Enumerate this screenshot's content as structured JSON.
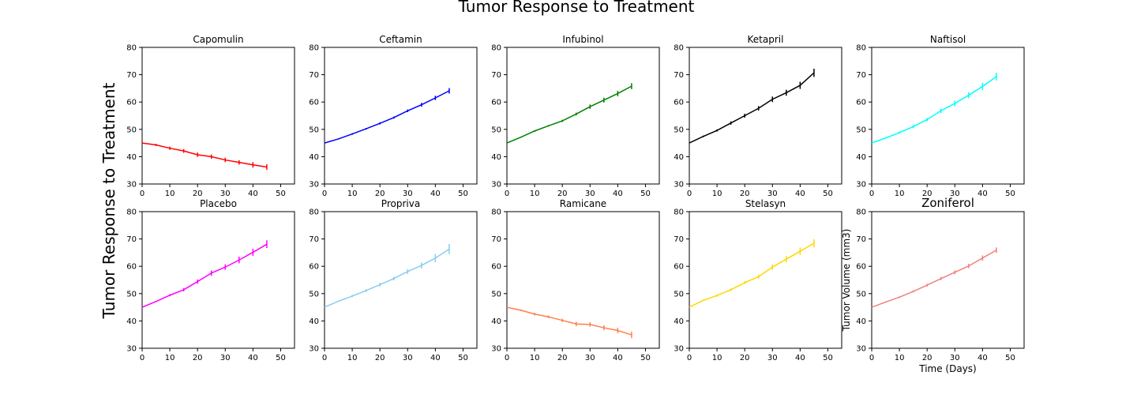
{
  "figure": {
    "suptitle": "Tumor Response to Treatment",
    "ylabel": "Tumor Response to Treatment"
  },
  "chart_data": [
    {
      "type": "line",
      "title": "Capomulin",
      "color": "#ff0000",
      "xlim": [
        0,
        55
      ],
      "ylim": [
        30,
        80
      ],
      "xticks": [
        0,
        10,
        20,
        30,
        40,
        50
      ],
      "yticks": [
        30,
        40,
        50,
        60,
        70,
        80
      ],
      "x": [
        0,
        5,
        10,
        15,
        20,
        25,
        30,
        35,
        40,
        45
      ],
      "y": [
        45.0,
        44.3,
        43.1,
        42.1,
        40.7,
        40.0,
        38.8,
        37.9,
        37.0,
        36.2
      ],
      "err": [
        0,
        0.4,
        0.6,
        0.7,
        0.8,
        0.8,
        0.8,
        0.8,
        1.0,
        1.0
      ],
      "xlabel": "",
      "ylabel": ""
    },
    {
      "type": "line",
      "title": "Ceftamin",
      "color": "#0000ff",
      "xlim": [
        0,
        55
      ],
      "ylim": [
        30,
        80
      ],
      "xticks": [
        0,
        10,
        20,
        30,
        40,
        50
      ],
      "yticks": [
        30,
        40,
        50,
        60,
        70,
        80
      ],
      "x": [
        0,
        5,
        10,
        15,
        20,
        25,
        30,
        35,
        40,
        45
      ],
      "y": [
        45.0,
        46.5,
        48.3,
        50.2,
        52.2,
        54.3,
        56.8,
        59.0,
        61.5,
        64.1
      ],
      "err": [
        0,
        0.2,
        0.3,
        0.3,
        0.4,
        0.4,
        0.5,
        0.7,
        0.8,
        1.0
      ],
      "xlabel": "",
      "ylabel": ""
    },
    {
      "type": "line",
      "title": "Infubinol",
      "color": "#008000",
      "xlim": [
        0,
        55
      ],
      "ylim": [
        30,
        80
      ],
      "xticks": [
        0,
        10,
        20,
        30,
        40,
        50
      ],
      "yticks": [
        30,
        40,
        50,
        60,
        70,
        80
      ],
      "x": [
        0,
        5,
        10,
        15,
        20,
        25,
        30,
        35,
        40,
        45
      ],
      "y": [
        45.0,
        47.1,
        49.4,
        51.3,
        53.1,
        55.6,
        58.3,
        60.7,
        63.1,
        65.8
      ],
      "err": [
        0,
        0.2,
        0.3,
        0.3,
        0.4,
        0.5,
        0.8,
        0.9,
        1.0,
        1.1
      ],
      "xlabel": "",
      "ylabel": ""
    },
    {
      "type": "line",
      "title": "Ketapril",
      "color": "#000000",
      "xlim": [
        0,
        55
      ],
      "ylim": [
        30,
        80
      ],
      "xticks": [
        0,
        10,
        20,
        30,
        40,
        50
      ],
      "yticks": [
        30,
        40,
        50,
        60,
        70,
        80
      ],
      "x": [
        0,
        5,
        10,
        15,
        20,
        25,
        30,
        35,
        40,
        45
      ],
      "y": [
        45.0,
        47.4,
        49.6,
        52.3,
        55.0,
        57.7,
        61.0,
        63.4,
        66.1,
        70.7
      ],
      "err": [
        0,
        0.3,
        0.4,
        0.6,
        0.7,
        0.8,
        1.0,
        1.1,
        1.3,
        1.5
      ],
      "xlabel": "",
      "ylabel": ""
    },
    {
      "type": "line",
      "title": "Naftisol",
      "color": "#00ffff",
      "xlim": [
        0,
        55
      ],
      "ylim": [
        30,
        80
      ],
      "xticks": [
        0,
        10,
        20,
        30,
        40,
        50
      ],
      "yticks": [
        30,
        40,
        50,
        60,
        70,
        80
      ],
      "x": [
        0,
        5,
        10,
        15,
        20,
        25,
        30,
        35,
        40,
        45
      ],
      "y": [
        45.0,
        46.8,
        48.8,
        51.0,
        53.6,
        56.8,
        59.5,
        62.5,
        65.7,
        69.3
      ],
      "err": [
        0,
        0.2,
        0.4,
        0.6,
        0.6,
        0.8,
        1.0,
        1.1,
        1.3,
        1.4
      ],
      "xlabel": "",
      "ylabel": ""
    },
    {
      "type": "line",
      "title": "Placebo",
      "color": "#ff00ff",
      "xlim": [
        0,
        55
      ],
      "ylim": [
        30,
        80
      ],
      "xticks": [
        0,
        10,
        20,
        30,
        40,
        50
      ],
      "yticks": [
        30,
        40,
        50,
        60,
        70,
        80
      ],
      "x": [
        0,
        5,
        10,
        15,
        20,
        25,
        30,
        35,
        40,
        45
      ],
      "y": [
        45.0,
        47.1,
        49.4,
        51.4,
        54.4,
        57.5,
        59.7,
        62.3,
        65.1,
        68.1
      ],
      "err": [
        0,
        0.2,
        0.4,
        0.6,
        0.8,
        1.0,
        1.0,
        1.2,
        1.3,
        1.4
      ],
      "xlabel": "",
      "ylabel": ""
    },
    {
      "type": "line",
      "title": "Propriva",
      "color": "#87ceeb",
      "xlim": [
        0,
        55
      ],
      "ylim": [
        30,
        80
      ],
      "xticks": [
        0,
        10,
        20,
        30,
        40,
        50
      ],
      "yticks": [
        30,
        40,
        50,
        60,
        70,
        80
      ],
      "x": [
        0,
        5,
        10,
        15,
        20,
        25,
        30,
        35,
        40,
        45
      ],
      "y": [
        45.0,
        47.2,
        49.1,
        51.1,
        53.3,
        55.5,
        58.1,
        60.3,
        63.0,
        66.3
      ],
      "err": [
        0,
        0.2,
        0.4,
        0.5,
        0.7,
        0.7,
        0.9,
        1.1,
        1.5,
        1.9
      ],
      "xlabel": "",
      "ylabel": ""
    },
    {
      "type": "line",
      "title": "Ramicane",
      "color": "#ff7f50",
      "xlim": [
        0,
        55
      ],
      "ylim": [
        30,
        80
      ],
      "xticks": [
        0,
        10,
        20,
        30,
        40,
        50
      ],
      "yticks": [
        30,
        40,
        50,
        60,
        70,
        80
      ],
      "x": [
        0,
        5,
        10,
        15,
        20,
        25,
        30,
        35,
        40,
        45
      ],
      "y": [
        45.0,
        43.9,
        42.5,
        41.5,
        40.2,
        38.9,
        38.7,
        37.5,
        36.5,
        34.9
      ],
      "err": [
        0,
        0.3,
        0.5,
        0.5,
        0.6,
        0.8,
        0.8,
        0.9,
        1.0,
        1.2
      ],
      "xlabel": "",
      "ylabel": ""
    },
    {
      "type": "line",
      "title": "Stelasyn",
      "color": "#ffd700",
      "xlim": [
        0,
        55
      ],
      "ylim": [
        30,
        80
      ],
      "xticks": [
        0,
        10,
        20,
        30,
        40,
        50
      ],
      "yticks": [
        30,
        40,
        50,
        60,
        70,
        80
      ],
      "x": [
        0,
        5,
        10,
        15,
        20,
        25,
        30,
        35,
        40,
        45
      ],
      "y": [
        45.0,
        47.5,
        49.3,
        51.4,
        54.0,
        56.2,
        59.7,
        62.6,
        65.5,
        68.4
      ],
      "err": [
        0,
        0.2,
        0.4,
        0.5,
        0.5,
        0.7,
        1.0,
        1.1,
        1.4,
        1.5
      ],
      "xlabel": "",
      "ylabel": ""
    },
    {
      "type": "line",
      "title": "Zoniferol",
      "color": "#f08080",
      "xlim": [
        0,
        55
      ],
      "ylim": [
        30,
        80
      ],
      "xticks": [
        0,
        10,
        20,
        30,
        40,
        50
      ],
      "yticks": [
        30,
        40,
        50,
        60,
        70,
        80
      ],
      "x": [
        0,
        5,
        10,
        15,
        20,
        25,
        30,
        35,
        40,
        45
      ],
      "y": [
        45.0,
        46.9,
        48.7,
        50.8,
        53.1,
        55.5,
        57.8,
        60.1,
        63.0,
        65.9
      ],
      "err": [
        0,
        0.2,
        0.3,
        0.4,
        0.5,
        0.6,
        0.7,
        0.8,
        1.0,
        1.0
      ],
      "xlabel": "Time (Days)",
      "ylabel": "Tumor Volume (mm3)"
    }
  ]
}
